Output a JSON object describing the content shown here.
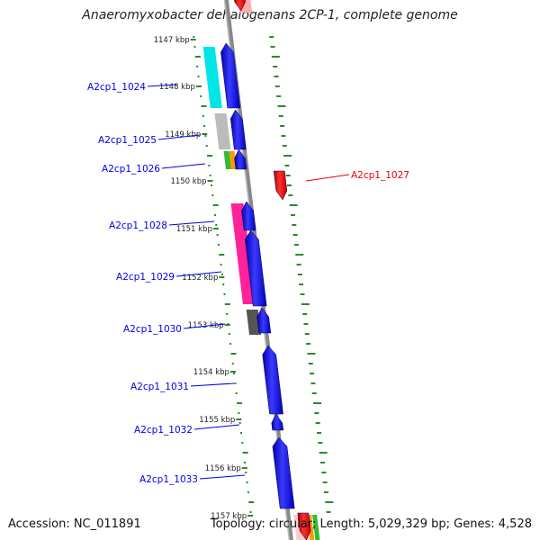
{
  "title": "Anaeromyxobacter dehalogenans 2CP-1, complete genome",
  "footer": {
    "accession": "Accession: NC_011891",
    "topology": "Topology: circular; Length: 5,029,329 bp; Genes: 4,528"
  },
  "ticks": [
    "1147 kbp",
    "1148 kbp",
    "1149 kbp",
    "1150 kbp",
    "1151 kbp",
    "1152 kbp",
    "1153 kbp",
    "1154 kbp",
    "1155 kbp",
    "1156 kbp",
    "1157 kbp"
  ],
  "genes": [
    {
      "name": "A2cp1_1024",
      "color": "#0000ee"
    },
    {
      "name": "A2cp1_1025",
      "color": "#0000ee"
    },
    {
      "name": "A2cp1_1026",
      "color": "#0000ee"
    },
    {
      "name": "A2cp1_1027",
      "color": "#ee0000"
    },
    {
      "name": "A2cp1_1028",
      "color": "#0000ee"
    },
    {
      "name": "A2cp1_1029",
      "color": "#0000ee"
    },
    {
      "name": "A2cp1_1030",
      "color": "#0000ee"
    },
    {
      "name": "A2cp1_1031",
      "color": "#0000ee"
    },
    {
      "name": "A2cp1_1032",
      "color": "#0000ee"
    },
    {
      "name": "A2cp1_1033",
      "color": "#0000ee"
    }
  ],
  "colors": {
    "forward_strand": "#0000ee",
    "reverse_strand": "#ee0000",
    "backbone": "#888888",
    "gc_skew_dots": "#2a8a2a",
    "cog_cyan": "#00e5e5",
    "cog_lightgray": "#bbbbbb",
    "cog_green": "#33bb33",
    "cog_orange": "#ff9900",
    "cog_pink": "#ff2299",
    "cog_darkgray": "#555555"
  }
}
